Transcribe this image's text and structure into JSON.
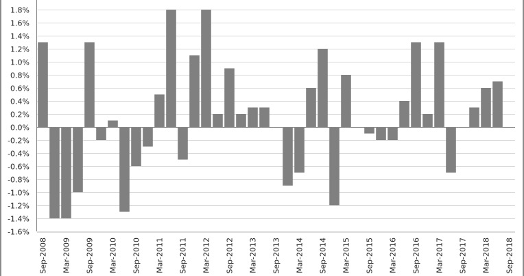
{
  "chart_data": {
    "type": "bar",
    "title": "",
    "xlabel": "",
    "ylabel": "",
    "ylim": [
      -1.6,
      1.8
    ],
    "y_ticks": [
      "1.8%",
      "1.6%",
      "1.4%",
      "1.2%",
      "1.0%",
      "0.8%",
      "0.6%",
      "0.4%",
      "0.2%",
      "0.0%",
      "-0.2%",
      "-0.4%",
      "-0.6%",
      "-0.8%",
      "-1.0%",
      "-1.2%",
      "-1.4%",
      "-1.6%"
    ],
    "y_tick_values": [
      1.8,
      1.6,
      1.4,
      1.2,
      1.0,
      0.8,
      0.6,
      0.4,
      0.2,
      0.0,
      -0.2,
      -0.4,
      -0.6,
      -0.8,
      -1.0,
      -1.2,
      -1.4,
      -1.6
    ],
    "grid": true,
    "legend": "none",
    "bar_color": "#808080",
    "gridline_color": "#d9d9d9",
    "x_tick_labels": [
      "Sep-2008",
      "Mar-2009",
      "Sep-2009",
      "Mar-2010",
      "Sep-2010",
      "Mar-2011",
      "Sep-2011",
      "Mar-2012",
      "Sep-2012",
      "Mar-2013",
      "Sep-2013",
      "Mar-2014",
      "Sep-2014",
      "Mar-2015",
      "Sep-2015",
      "Mar-2016",
      "Sep-2016",
      "Mar-2017",
      "Sep-2017",
      "Mar-2018",
      "Sep-2018"
    ],
    "categories": [
      "Sep-2008",
      "Dec-2008",
      "Mar-2009",
      "Jun-2009",
      "Sep-2009",
      "Dec-2009",
      "Mar-2010",
      "Jun-2010",
      "Sep-2010",
      "Dec-2010",
      "Mar-2011",
      "Jun-2011",
      "Sep-2011",
      "Dec-2011",
      "Mar-2012",
      "Jun-2012",
      "Sep-2012",
      "Dec-2012",
      "Mar-2013",
      "Jun-2013",
      "Sep-2013",
      "Dec-2013",
      "Mar-2014",
      "Jun-2014",
      "Sep-2014",
      "Dec-2014",
      "Mar-2015",
      "Jun-2015",
      "Sep-2015",
      "Dec-2015",
      "Mar-2016",
      "Jun-2016",
      "Sep-2016",
      "Dec-2016",
      "Mar-2017",
      "Jun-2017",
      "Sep-2017",
      "Dec-2017",
      "Mar-2018",
      "Jun-2018",
      "Sep-2018"
    ],
    "values": [
      1.3,
      -1.4,
      -1.4,
      -1.0,
      1.3,
      -0.2,
      0.1,
      -1.3,
      -0.6,
      -0.3,
      0.5,
      1.8,
      -0.5,
      1.1,
      1.8,
      0.2,
      0.9,
      0.2,
      0.3,
      0.3,
      0.0,
      -0.9,
      -0.7,
      0.6,
      1.2,
      -1.2,
      0.8,
      0.0,
      -0.1,
      -0.2,
      -0.2,
      0.4,
      1.3,
      0.2,
      1.3,
      -0.7,
      0.0,
      0.3,
      0.6,
      0.7,
      0.0
    ],
    "unit": "%"
  }
}
